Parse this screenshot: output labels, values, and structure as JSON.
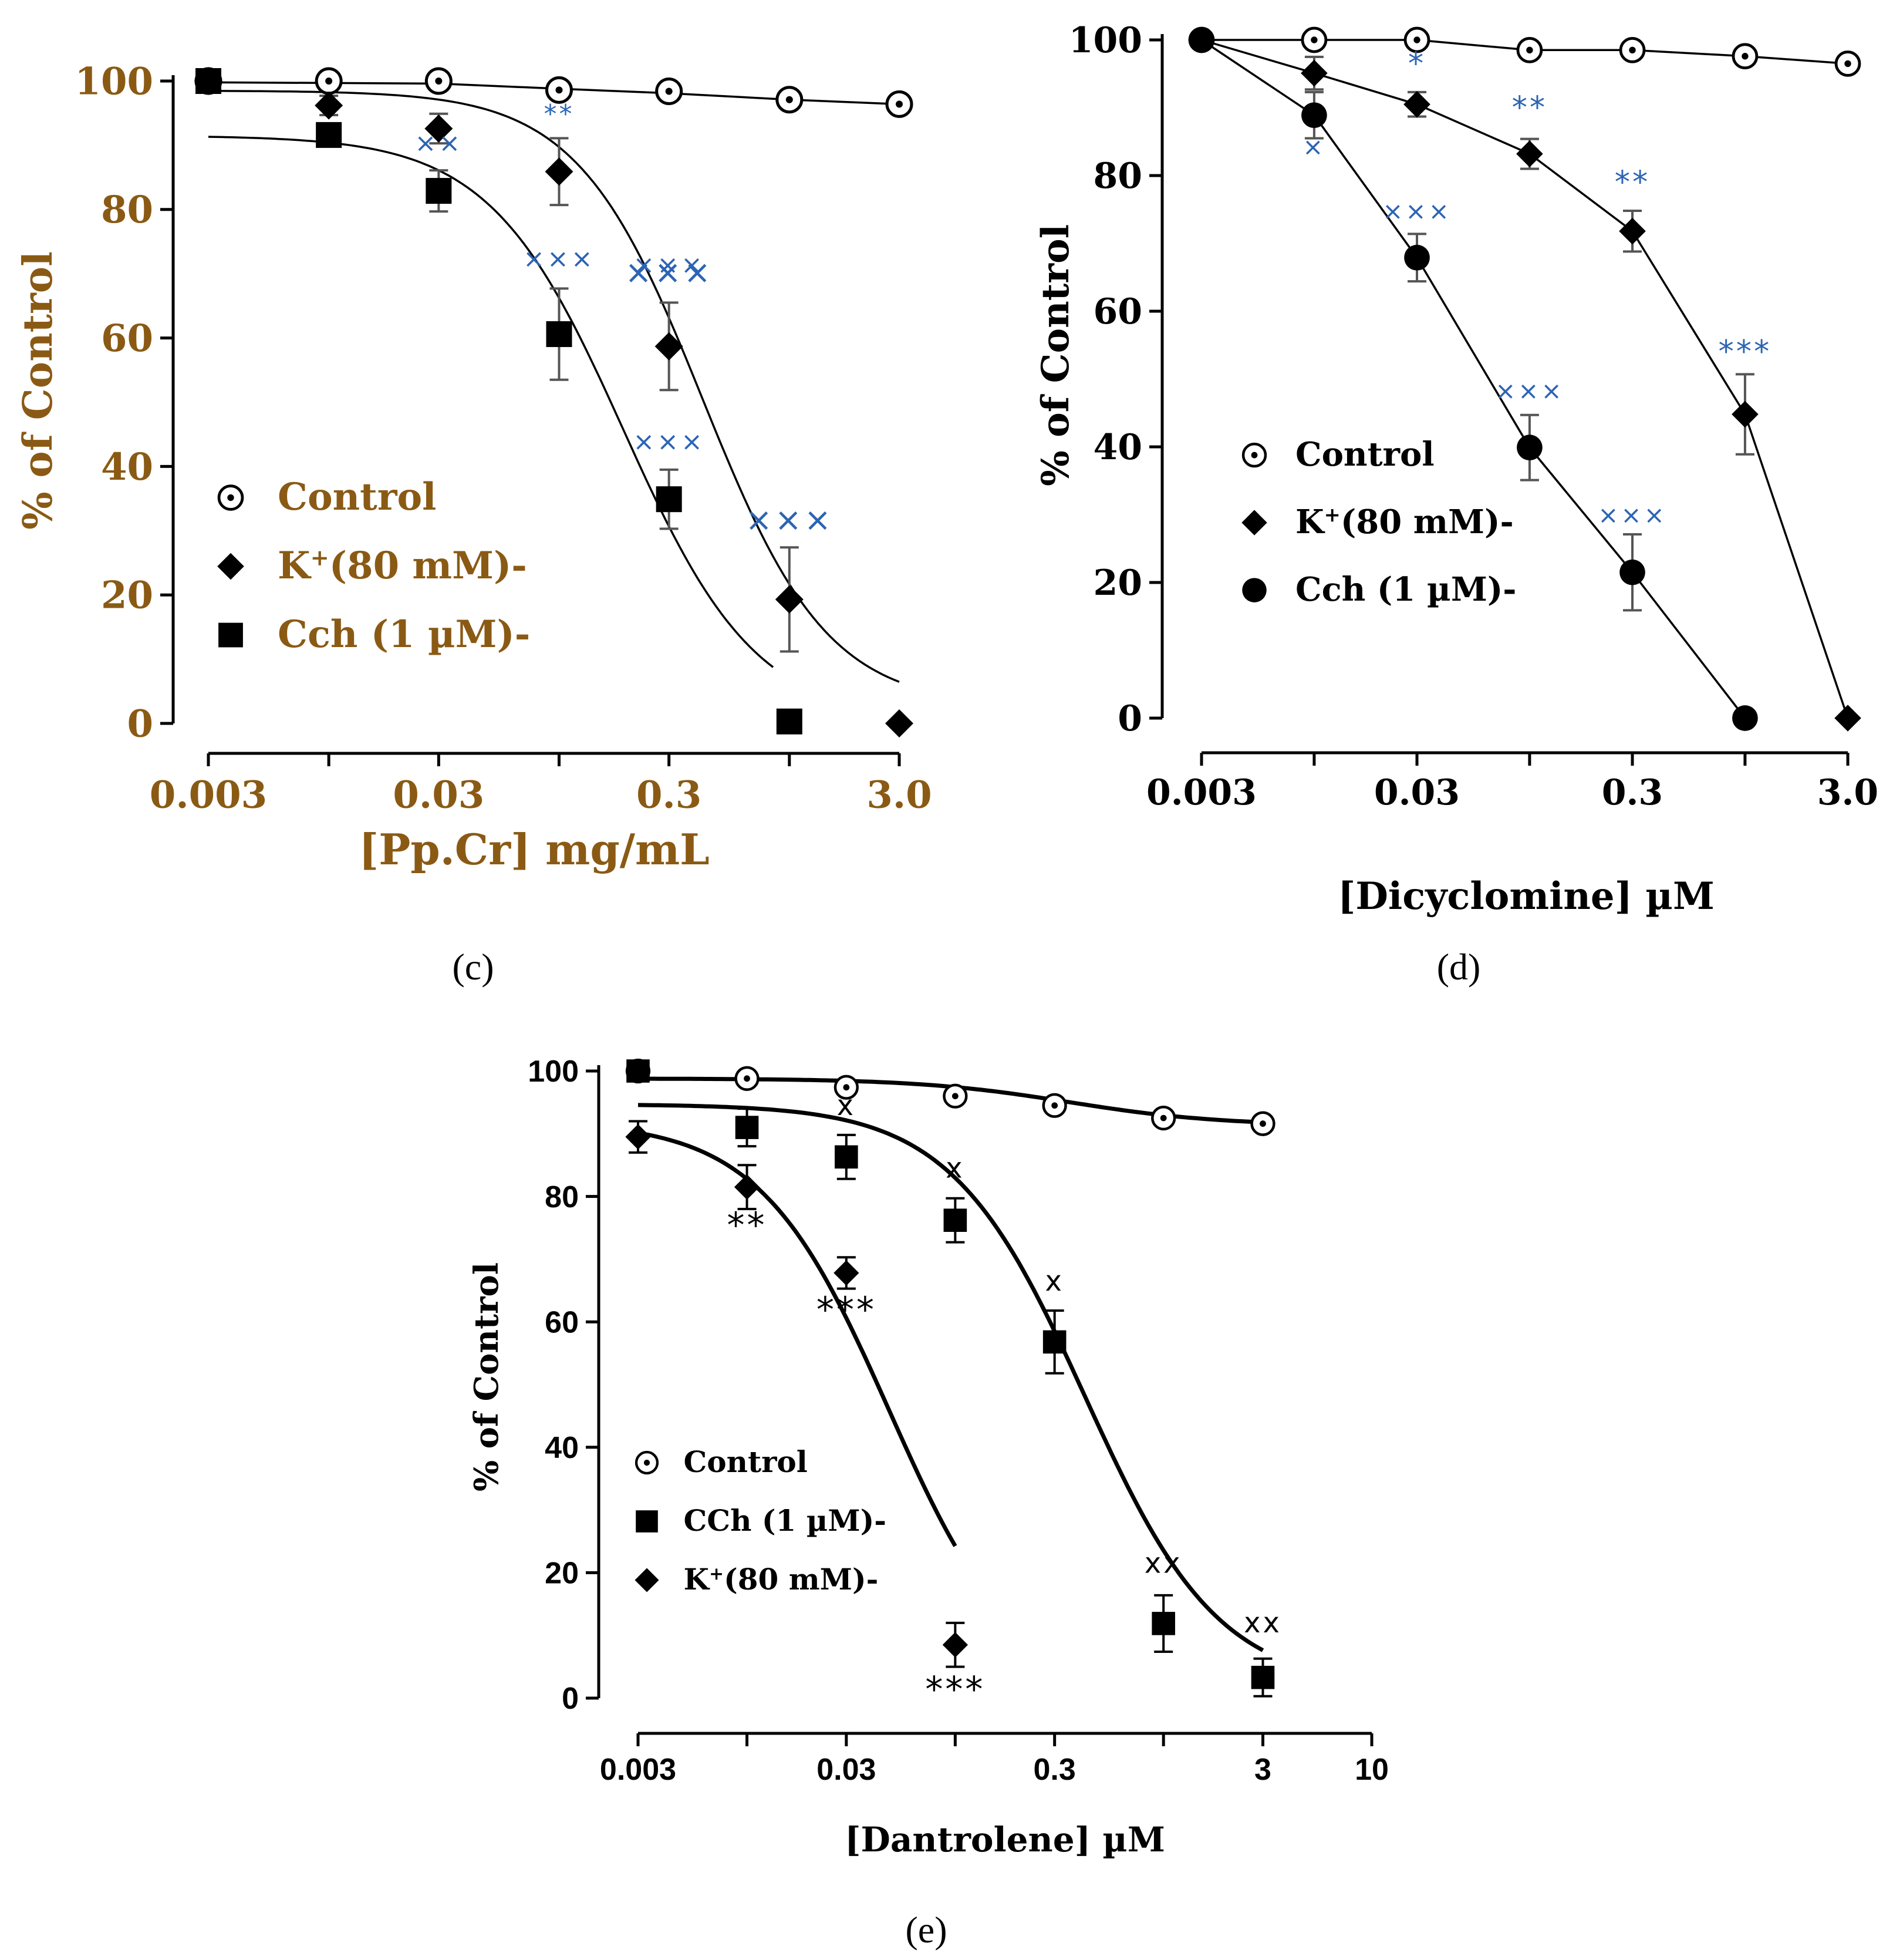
{
  "panels": {
    "c": {
      "caption": "(c)"
    },
    "d": {
      "caption": "(d)"
    },
    "e": {
      "caption": "(e)"
    }
  },
  "chart_data": [
    {
      "id": "c",
      "type": "line",
      "caption": "(c)",
      "xlabel": "[Pp.Cr] mg/mL",
      "ylabel": "% of Control",
      "xscale": "log",
      "xlim": [
        0.003,
        3.0
      ],
      "ylim": [
        0,
        100
      ],
      "xticks": [
        0.003,
        0.01,
        0.03,
        0.1,
        0.3,
        1.0,
        3.0
      ],
      "xtick_labels": [
        {
          "x": 0.003,
          "label": "0.003"
        },
        {
          "x": 0.03,
          "label": "0.03"
        },
        {
          "x": 0.3,
          "label": "0.3"
        },
        {
          "x": 3.0,
          "label": "3.0"
        }
      ],
      "yticks": [
        0,
        20,
        40,
        60,
        80,
        100
      ],
      "ytick_labels": [
        "0",
        "20",
        "40",
        "60",
        "80",
        "100"
      ],
      "legend": [
        {
          "label": "Control",
          "marker": "circle-dot"
        },
        {
          "label": "K+(80 mM)-",
          "label_main": "K",
          "label_sup": "+",
          "label_rest": "(80 mM)-",
          "marker": "diamond"
        },
        {
          "label": "Cch (1 µM)-",
          "marker": "square"
        }
      ],
      "series": [
        {
          "name": "Control",
          "marker": "circle-dot",
          "points": [
            {
              "x": 0.003,
              "y": 100
            },
            {
              "x": 0.01,
              "y": 100
            },
            {
              "x": 0.03,
              "y": 100
            },
            {
              "x": 0.1,
              "y": 98.6
            },
            {
              "x": 0.3,
              "y": 98.4
            },
            {
              "x": 1.0,
              "y": 97.1
            },
            {
              "x": 3.0,
              "y": 96.4
            }
          ],
          "fit": {
            "kind": "poly",
            "coords": [
              [
                0.003,
                99.8
              ],
              [
                0.03,
                99.6
              ],
              [
                0.1,
                98.8
              ],
              [
                0.3,
                98.1
              ],
              [
                1.0,
                97.1
              ],
              [
                3.0,
                96.4
              ]
            ]
          }
        },
        {
          "name": "K+(80 mM)-",
          "marker": "diamond",
          "points": [
            {
              "x": 0.003,
              "y": 100
            },
            {
              "x": 0.01,
              "y": 96.2,
              "err": 1.5
            },
            {
              "x": 0.03,
              "y": 92.6,
              "err": 2.3
            },
            {
              "x": 0.1,
              "y": 85.9,
              "err": 5.2
            },
            {
              "x": 0.3,
              "y": 58.7,
              "err": 6.8
            },
            {
              "x": 1.0,
              "y": 19.3,
              "err": 8.1
            },
            {
              "x": 3.0,
              "y": 0
            }
          ],
          "fit": {
            "kind": "hill",
            "top": 98.5,
            "bottom": 2.5,
            "ec50": 0.42,
            "hill": 1.6
          }
        },
        {
          "name": "Cch (1 µM)-",
          "marker": "square",
          "points": [
            {
              "x": 0.003,
              "y": 100
            },
            {
              "x": 0.01,
              "y": 91.6,
              "err": 1.3
            },
            {
              "x": 0.03,
              "y": 82.9,
              "err": 3.2
            },
            {
              "x": 0.1,
              "y": 60.6,
              "err": 7.1
            },
            {
              "x": 0.3,
              "y": 34.9,
              "err": 4.6
            },
            {
              "x": 1.0,
              "y": 0.3
            }
          ],
          "fit": {
            "kind": "hill",
            "top": 91.5,
            "bottom": 0,
            "ec50": 0.19,
            "hill": 1.5,
            "xmax": 0.85
          }
        }
      ],
      "annotations": [
        {
          "text": "**",
          "x": 0.1,
          "y": 93.5,
          "color": "#2c64b4"
        },
        {
          "text": "×××",
          "x": 0.3,
          "y": 70,
          "color": "#2c64b4"
        },
        {
          "text": "×××",
          "x": 0.3,
          "y": 68.5,
          "color": "#2c64b4",
          "symbol": "star"
        },
        {
          "text": "×××",
          "x": 1.0,
          "y": 30,
          "color": "#2c64b4",
          "symbol": "star"
        },
        {
          "text": "××",
          "x": 0.03,
          "y": 89,
          "color": "#2c64b4"
        },
        {
          "text": "×××",
          "x": 0.1,
          "y": 71,
          "color": "#2c64b4"
        },
        {
          "text": "×××",
          "x": 0.3,
          "y": 42.5,
          "color": "#2c64b4"
        }
      ]
    },
    {
      "id": "d",
      "type": "line",
      "caption": "(d)",
      "xlabel": "[Dicyclomine] µM",
      "ylabel": "% of Control",
      "xscale": "log",
      "xlim": [
        0.003,
        3.0
      ],
      "ylim": [
        0,
        100
      ],
      "xticks": [
        0.003,
        0.01,
        0.03,
        0.1,
        0.3,
        1.0,
        3.0
      ],
      "xtick_labels": [
        {
          "x": 0.003,
          "label": "0.003"
        },
        {
          "x": 0.03,
          "label": "0.03"
        },
        {
          "x": 0.3,
          "label": "0.3"
        },
        {
          "x": 3.0,
          "label": "3.0"
        }
      ],
      "yticks": [
        0,
        20,
        40,
        60,
        80,
        100
      ],
      "ytick_labels": [
        "0",
        "20",
        "40",
        "60",
        "80",
        "100"
      ],
      "legend": [
        {
          "label": "Control",
          "marker": "circle-dot"
        },
        {
          "label": "K+(80 mM)-",
          "label_main": "K",
          "label_sup": "+",
          "label_rest": "(80 mM)-",
          "marker": "diamond"
        },
        {
          "label": "Cch (1 µM)-",
          "marker": "circle"
        }
      ],
      "series": [
        {
          "name": "Control",
          "marker": "circle-dot",
          "points": [
            {
              "x": 0.003,
              "y": 100
            },
            {
              "x": 0.01,
              "y": 100
            },
            {
              "x": 0.03,
              "y": 100
            },
            {
              "x": 0.1,
              "y": 98.5
            },
            {
              "x": 0.3,
              "y": 98.5
            },
            {
              "x": 1.0,
              "y": 97.6
            },
            {
              "x": 3.0,
              "y": 96.5
            }
          ],
          "fit": {
            "kind": "poly",
            "coords": [
              [
                0.003,
                100
              ],
              [
                0.01,
                100
              ],
              [
                0.03,
                100
              ],
              [
                0.1,
                98.5
              ],
              [
                0.3,
                98.5
              ],
              [
                1.0,
                97.6
              ],
              [
                3.0,
                96.5
              ]
            ]
          }
        },
        {
          "name": "K+(80 mM)-",
          "marker": "diamond",
          "points": [
            {
              "x": 0.003,
              "y": 100
            },
            {
              "x": 0.01,
              "y": 95.1,
              "err": 2.4
            },
            {
              "x": 0.03,
              "y": 90.5,
              "err": 1.8
            },
            {
              "x": 0.1,
              "y": 83.2,
              "err": 2.2
            },
            {
              "x": 0.3,
              "y": 71.8,
              "err": 3.0
            },
            {
              "x": 1.0,
              "y": 44.8,
              "err": 5.9
            },
            {
              "x": 3.0,
              "y": 0
            }
          ],
          "fit": {
            "kind": "poly",
            "coords": [
              [
                0.003,
                100
              ],
              [
                0.01,
                95.1
              ],
              [
                0.03,
                90.5
              ],
              [
                0.1,
                83.2
              ],
              [
                0.3,
                71.8
              ],
              [
                1.0,
                44.8
              ],
              [
                3.0,
                0
              ]
            ]
          }
        },
        {
          "name": "Cch (1 µM)-",
          "marker": "circle",
          "points": [
            {
              "x": 0.003,
              "y": 100
            },
            {
              "x": 0.01,
              "y": 88.9,
              "err": 3.4
            },
            {
              "x": 0.03,
              "y": 67.9,
              "err": 3.5
            },
            {
              "x": 0.1,
              "y": 39.9,
              "err": 4.8
            },
            {
              "x": 0.3,
              "y": 21.5,
              "err": 5.6
            },
            {
              "x": 1.0,
              "y": 0
            }
          ],
          "fit": {
            "kind": "poly",
            "coords": [
              [
                0.003,
                100
              ],
              [
                0.01,
                88.9
              ],
              [
                0.03,
                67.9
              ],
              [
                0.1,
                39.9
              ],
              [
                0.3,
                21.5
              ],
              [
                1.0,
                0
              ]
            ]
          }
        }
      ],
      "annotations": [
        {
          "text": "*",
          "x": 0.03,
          "y": 95,
          "color": "#2c64b4",
          "symbol": "star"
        },
        {
          "text": "**",
          "x": 0.1,
          "y": 88.5,
          "color": "#2c64b4",
          "symbol": "star"
        },
        {
          "text": "**",
          "x": 0.3,
          "y": 77.5,
          "color": "#2c64b4",
          "symbol": "star"
        },
        {
          "text": "***",
          "x": 1.0,
          "y": 52.5,
          "color": "#2c64b4",
          "symbol": "star"
        },
        {
          "text": "×",
          "x": 0.01,
          "y": 83,
          "color": "#2c64b4"
        },
        {
          "text": "×××",
          "x": 0.03,
          "y": 73.5,
          "color": "#2c64b4"
        },
        {
          "text": "×××",
          "x": 0.1,
          "y": 47,
          "color": "#2c64b4"
        },
        {
          "text": "×××",
          "x": 0.3,
          "y": 28.7,
          "color": "#2c64b4"
        }
      ]
    },
    {
      "id": "e",
      "type": "line",
      "caption": "(e)",
      "xlabel": "[Dantrolene] µM",
      "ylabel": "% of Control",
      "xscale": "log",
      "xlim": [
        0.003,
        10
      ],
      "ylim": [
        0,
        100
      ],
      "xticks": [
        0.003,
        0.01,
        0.03,
        0.1,
        0.3,
        1.0,
        3.0,
        10
      ],
      "xtick_labels": [
        {
          "x": 0.003,
          "label": "0.003"
        },
        {
          "x": 0.03,
          "label": "0.03"
        },
        {
          "x": 0.3,
          "label": "0.3"
        },
        {
          "x": 3.0,
          "label": "3"
        },
        {
          "x": 10,
          "label": "10"
        }
      ],
      "yticks": [
        0,
        20,
        40,
        60,
        80,
        100
      ],
      "ytick_labels": [
        "0",
        "20",
        "40",
        "60",
        "80",
        "100"
      ],
      "legend": [
        {
          "label": "Control",
          "marker": "circle-dot"
        },
        {
          "label": "CCh (1 µM)-",
          "marker": "square"
        },
        {
          "label": "K+(80 mM)-",
          "label_main": "K",
          "label_sup": "+",
          "label_rest": "(80 mM)-",
          "marker": "diamond"
        }
      ],
      "series": [
        {
          "name": "Control",
          "marker": "circle-dot",
          "points": [
            {
              "x": 0.003,
              "y": 100
            },
            {
              "x": 0.01,
              "y": 98.8
            },
            {
              "x": 0.03,
              "y": 97.4
            },
            {
              "x": 0.1,
              "y": 96
            },
            {
              "x": 0.3,
              "y": 94.5
            },
            {
              "x": 1.0,
              "y": 92.5
            },
            {
              "x": 3.0,
              "y": 91.6
            }
          ],
          "fit": {
            "kind": "hill",
            "top": 98.8,
            "bottom": 91.3,
            "ec50": 0.35,
            "hill": 1.2,
            "xmin": 0.003,
            "xmax": 3.0
          }
        },
        {
          "name": "CCh (1 µM)-",
          "marker": "square",
          "points": [
            {
              "x": 0.003,
              "y": 100
            },
            {
              "x": 0.01,
              "y": 91,
              "err": 3.0
            },
            {
              "x": 0.03,
              "y": 86.3,
              "err": 3.5
            },
            {
              "x": 0.1,
              "y": 76.2,
              "err": 3.5
            },
            {
              "x": 0.3,
              "y": 56.8,
              "err": 5.0
            },
            {
              "x": 1.0,
              "y": 11.9,
              "err": 4.5
            },
            {
              "x": 3.0,
              "y": 3.3,
              "err": 3.0
            }
          ],
          "fit": {
            "kind": "hill",
            "top": 94.7,
            "bottom": 1.5,
            "ec50": 0.42,
            "hill": 1.35,
            "xmin": 0.003,
            "xmax": 3.0
          }
        },
        {
          "name": "K+(80 mM)-",
          "marker": "diamond",
          "points": [
            {
              "x": 0.003,
              "y": 89.5,
              "err": 2.5
            },
            {
              "x": 0.01,
              "y": 81.5,
              "err": 3.5
            },
            {
              "x": 0.03,
              "y": 67.8,
              "err": 2.5
            },
            {
              "x": 0.1,
              "y": 8.5,
              "err": 3.5
            }
          ],
          "fit": {
            "kind": "hill",
            "top": 92,
            "bottom": 0,
            "ec50": 0.048,
            "hill": 1.4,
            "xmin": 0.003,
            "xmax": 0.1
          }
        }
      ],
      "annotations": [
        {
          "text": "x",
          "x": 0.03,
          "y": 93,
          "color": "#000"
        },
        {
          "text": "x",
          "x": 0.1,
          "y": 83,
          "color": "#000"
        },
        {
          "text": "x",
          "x": 0.3,
          "y": 65,
          "color": "#000"
        },
        {
          "text": "xx",
          "x": 1.0,
          "y": 20,
          "color": "#000"
        },
        {
          "text": "xx",
          "x": 3.0,
          "y": 10.5,
          "color": "#000"
        },
        {
          "text": "**",
          "x": 0.01,
          "y": 73.5,
          "color": "#000",
          "symbol": "star"
        },
        {
          "text": "***",
          "x": 0.03,
          "y": 60,
          "color": "#000",
          "symbol": "star"
        },
        {
          "text": "***",
          "x": 0.1,
          "y": -0.5,
          "color": "#000",
          "symbol": "star"
        }
      ]
    }
  ]
}
